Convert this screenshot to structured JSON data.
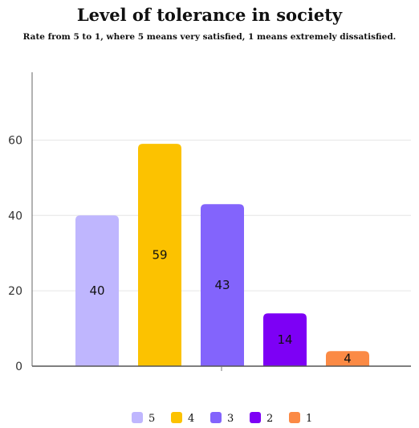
{
  "chart_data": {
    "type": "bar",
    "title": "Level of tolerance in society",
    "subtitle": "Rate from 5 to 1, where 5 means very satisfied, 1 means extremely dissatisfied.",
    "xlabel": "",
    "ylabel": "",
    "ylim": [
      0,
      78
    ],
    "yticks": [
      "0",
      "20",
      "40",
      "60"
    ],
    "categories": [
      "5",
      "4",
      "3",
      "2",
      "1"
    ],
    "values": [
      40,
      59,
      43,
      14,
      4
    ],
    "colors": [
      "#bfb6fe",
      "#fcc200",
      "#8364fc",
      "#7d00f5",
      "#fb8a45"
    ],
    "grid": true,
    "legend": "bottom-center"
  }
}
